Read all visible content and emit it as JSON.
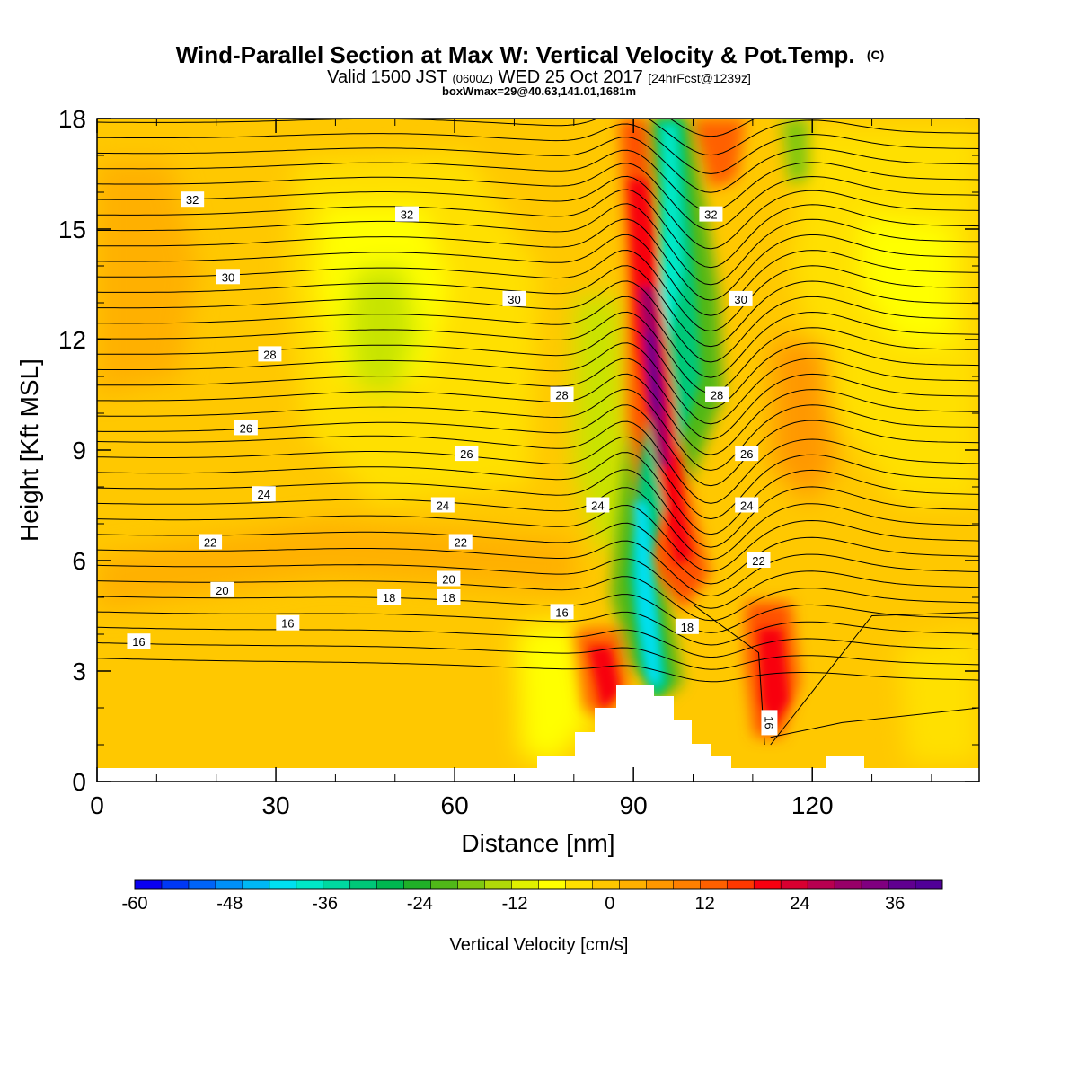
{
  "header": {
    "title": "Wind-Parallel Section at Max W: Vertical Velocity & Pot.Temp.",
    "copyright_mark": "(C)",
    "valid_prefix": "Valid 1500 JST",
    "valid_utc": "(0600Z)",
    "valid_date": "WED 25 Oct 2017",
    "forecast": "[24hrFcst@1239z]",
    "box_info": "boxWmax=29@40.63,141.01,1681m"
  },
  "chart_data": {
    "type": "heatmap",
    "xlabel": "Distance [nm]",
    "ylabel": "Height [Kft MSL]",
    "xlim": [
      0,
      148
    ],
    "ylim": [
      0,
      18
    ],
    "x_ticks": [
      "0",
      "30",
      "60",
      "90",
      "120"
    ],
    "y_ticks": [
      "0",
      "3",
      "6",
      "9",
      "12",
      "15",
      "18"
    ],
    "x_tick_values": [
      0,
      30,
      60,
      90,
      120
    ],
    "y_tick_values": [
      0,
      3,
      6,
      9,
      12,
      15,
      18
    ],
    "colorbar": {
      "label": "Vertical Velocity [cm/s]",
      "min": -60,
      "max": 42,
      "step": 3,
      "tick_labels": [
        "-60",
        "-48",
        "-36",
        "-24",
        "-12",
        "0",
        "12",
        "24",
        "36"
      ],
      "tick_values": [
        -60,
        -48,
        -36,
        -24,
        -12,
        0,
        12,
        24,
        36
      ],
      "colors": [
        "#0a00f0",
        "#0038f5",
        "#0064f8",
        "#0090f8",
        "#00b8f5",
        "#00e0f0",
        "#00e8c8",
        "#00d8a0",
        "#00c878",
        "#00b850",
        "#20b028",
        "#50b818",
        "#80c810",
        "#b0d808",
        "#e0f000",
        "#ffff00",
        "#ffe000",
        "#ffc800",
        "#ffb000",
        "#ff9800",
        "#ff8000",
        "#ff6000",
        "#ff3800",
        "#f80010",
        "#d80030",
        "#b80050",
        "#980068",
        "#800080",
        "#600090",
        "#500098"
      ]
    },
    "theta_contour_labels": [
      "16",
      "18",
      "20",
      "22",
      "24",
      "26",
      "28",
      "30",
      "32"
    ],
    "updraft_max": 29
  }
}
